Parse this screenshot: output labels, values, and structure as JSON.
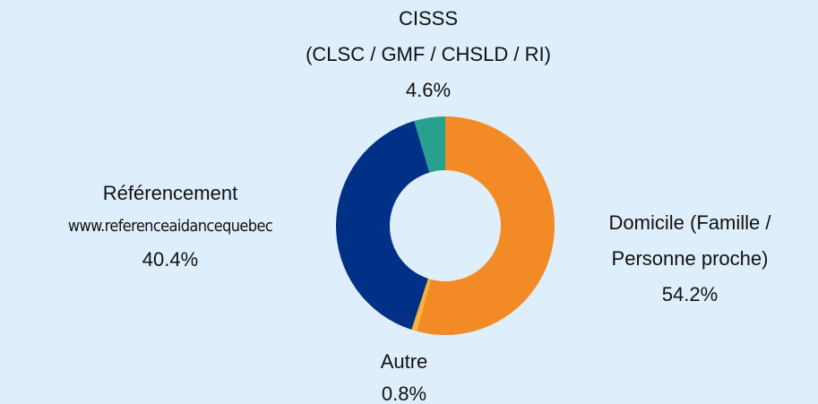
{
  "chart_data": {
    "type": "donut",
    "categories": [
      [
        "Domicile (Famille /",
        "Personne proche)"
      ],
      [
        "Autre"
      ],
      [
        "Référencement",
        "www.referenceaidancequebec"
      ],
      [
        "CISSS",
        "(CLSC / GMF / CHSLD / RI)"
      ]
    ],
    "values": [
      54.2,
      0.8,
      40.4,
      4.6
    ],
    "value_labels": [
      "54.2%",
      "0.8%",
      "40.4%",
      "4.6%"
    ],
    "colors": [
      "#f28a26",
      "#f7b23b",
      "#013087",
      "#26a08f"
    ]
  }
}
